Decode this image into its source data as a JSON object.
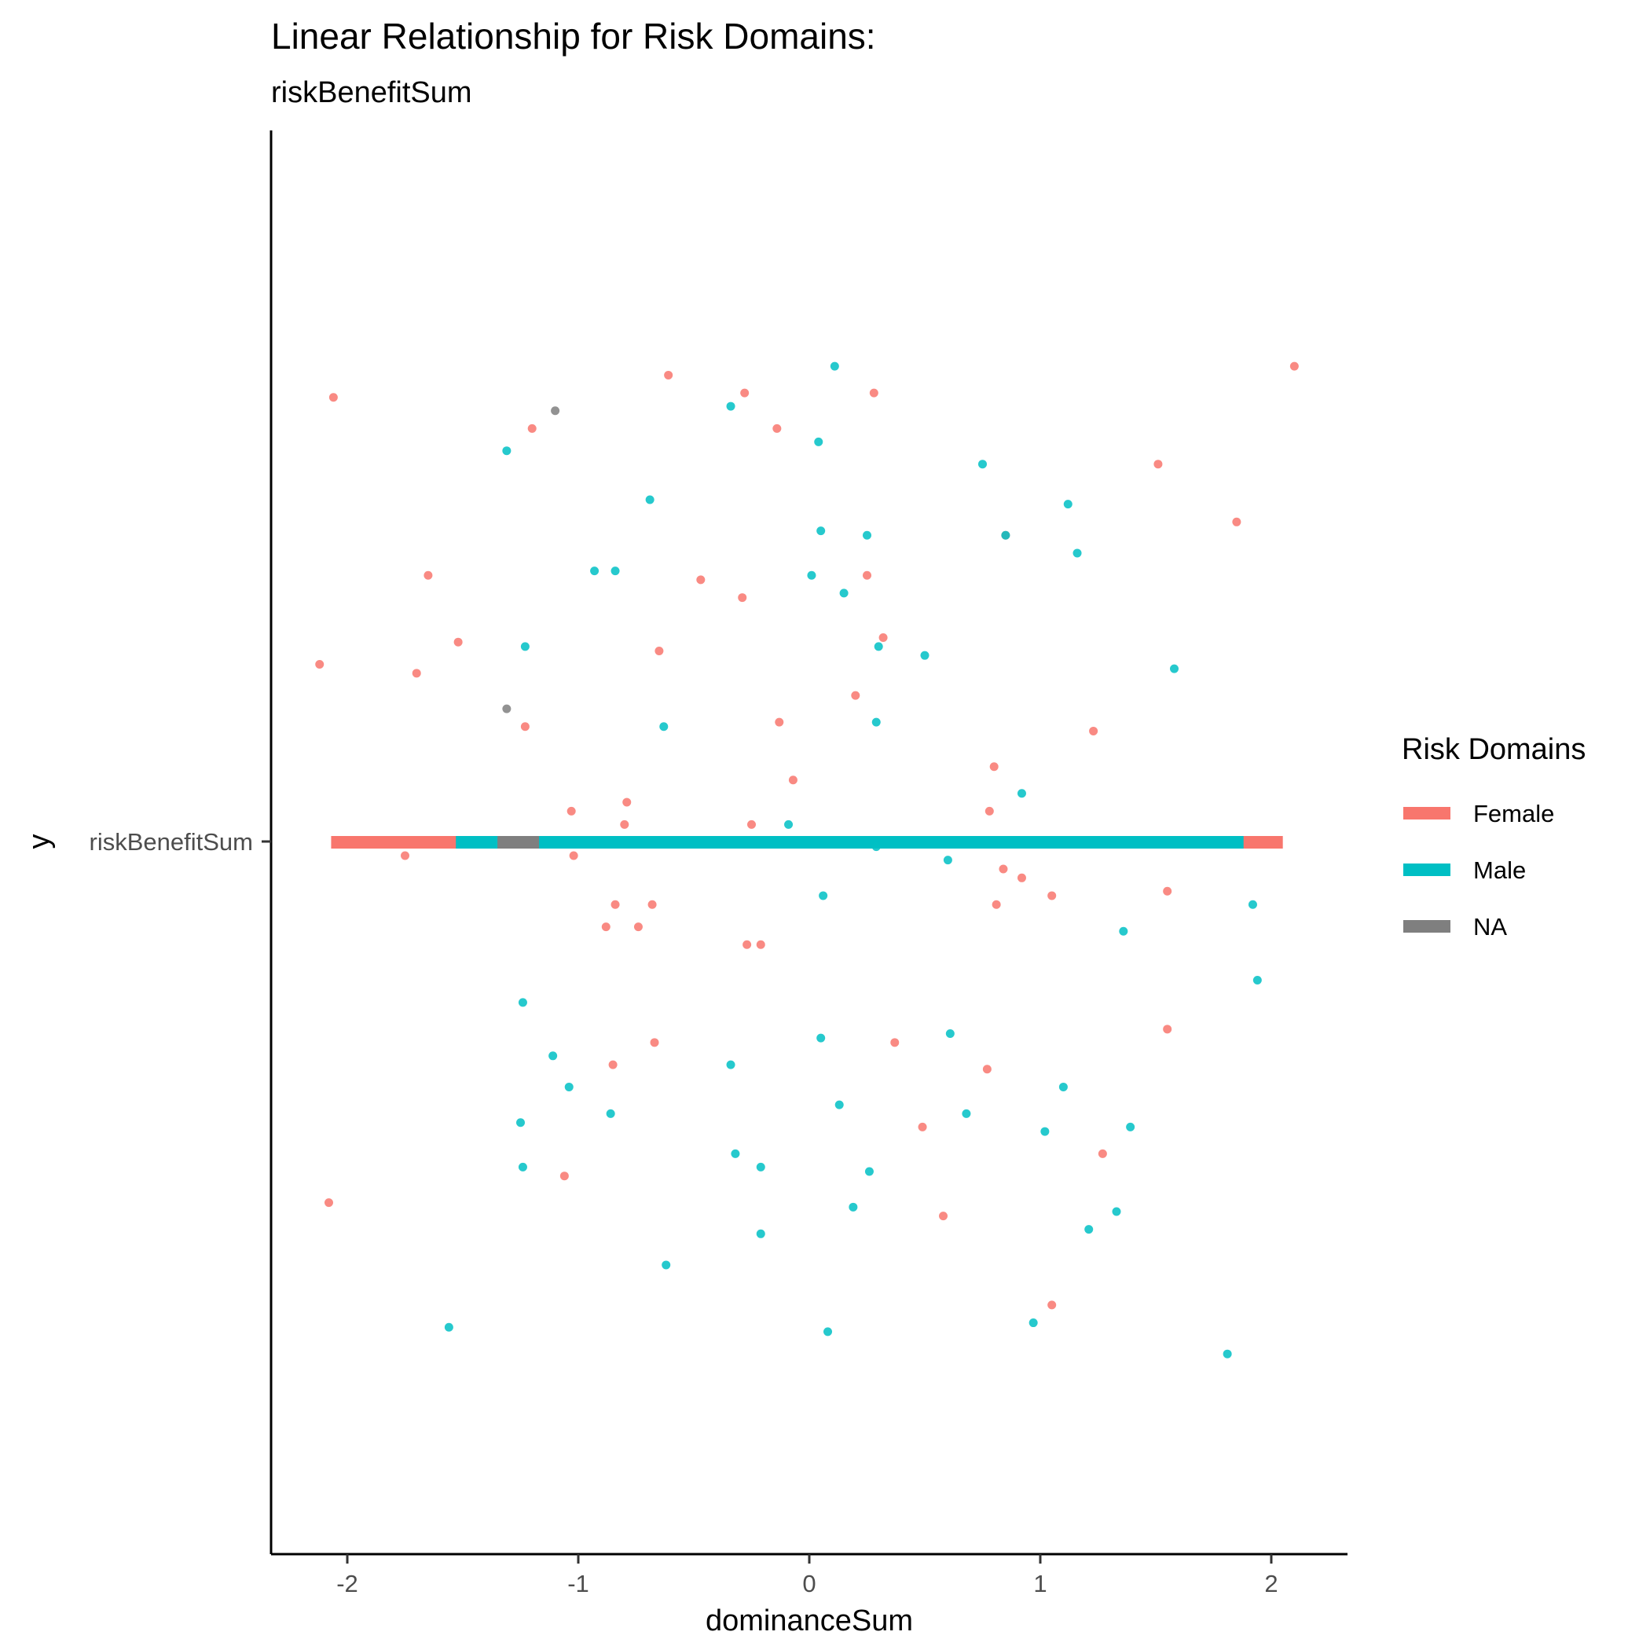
{
  "chart_data": {
    "type": "scatter",
    "title": "Linear Relationship for Risk Domains:",
    "subtitle": "riskBenefitSum",
    "xlabel": "dominanceSum",
    "ylabel": "y",
    "y_category": "riskBenefitSum",
    "xlim": [
      -2.33,
      2.33
    ],
    "ylim": [
      -1.6,
      1.6
    ],
    "x_ticks": [
      -2,
      -1,
      0,
      1,
      2
    ],
    "x_tick_labels": [
      "-2",
      "-1",
      "0",
      "1",
      "2"
    ],
    "grid": false,
    "legend_position": "right",
    "legend_title": "Risk Domains",
    "legend": [
      {
        "key": "female",
        "label": "Female",
        "color": "#F8766D"
      },
      {
        "key": "male",
        "label": "Male",
        "color": "#00BFC4"
      },
      {
        "key": "na",
        "label": "NA",
        "color": "#7F7F7F"
      }
    ],
    "range_bars": [
      {
        "group": "female",
        "x_start": -2.07,
        "x_end": 2.05
      },
      {
        "group": "male",
        "x_start": -1.53,
        "x_end": 1.88
      },
      {
        "group": "na",
        "x_start": -1.35,
        "x_end": -1.17
      }
    ],
    "series": [
      {
        "group": "female",
        "color": "#F8766D",
        "points": [
          [
            -2.06,
            1.0
          ],
          [
            -0.61,
            1.05
          ],
          [
            -0.28,
            1.01
          ],
          [
            0.28,
            1.01
          ],
          [
            2.1,
            1.07
          ],
          [
            -1.2,
            0.93
          ],
          [
            -0.14,
            0.93
          ],
          [
            1.51,
            0.85
          ],
          [
            1.85,
            0.72
          ],
          [
            0.85,
            0.69
          ],
          [
            -1.65,
            0.6
          ],
          [
            -0.47,
            0.59
          ],
          [
            -0.29,
            0.55
          ],
          [
            0.25,
            0.6
          ],
          [
            -1.52,
            0.45
          ],
          [
            -2.12,
            0.4
          ],
          [
            -1.7,
            0.38
          ],
          [
            -0.65,
            0.43
          ],
          [
            0.32,
            0.46
          ],
          [
            0.2,
            0.33
          ],
          [
            -1.23,
            0.26
          ],
          [
            -0.13,
            0.27
          ],
          [
            1.23,
            0.25
          ],
          [
            0.8,
            0.17
          ],
          [
            -0.07,
            0.14
          ],
          [
            -0.79,
            0.09
          ],
          [
            -1.03,
            0.07
          ],
          [
            0.78,
            0.07
          ],
          [
            -0.8,
            0.04
          ],
          [
            -0.25,
            0.04
          ],
          [
            -1.75,
            -0.03
          ],
          [
            -1.02,
            -0.03
          ],
          [
            0.84,
            -0.06
          ],
          [
            0.92,
            -0.08
          ],
          [
            1.55,
            -0.11
          ],
          [
            1.05,
            -0.12
          ],
          [
            0.81,
            -0.14
          ],
          [
            -0.84,
            -0.14
          ],
          [
            -0.68,
            -0.14
          ],
          [
            -0.88,
            -0.19
          ],
          [
            -0.74,
            -0.19
          ],
          [
            -0.27,
            -0.23
          ],
          [
            -0.21,
            -0.23
          ],
          [
            1.55,
            -0.42
          ],
          [
            -0.67,
            -0.45
          ],
          [
            0.37,
            -0.45
          ],
          [
            -0.85,
            -0.5
          ],
          [
            0.77,
            -0.51
          ],
          [
            0.49,
            -0.64
          ],
          [
            1.27,
            -0.7
          ],
          [
            -1.06,
            -0.75
          ],
          [
            -2.08,
            -0.81
          ],
          [
            0.58,
            -0.84
          ],
          [
            1.05,
            -1.04
          ]
        ]
      },
      {
        "group": "male",
        "color": "#00BFC4",
        "points": [
          [
            0.11,
            1.07
          ],
          [
            -0.34,
            0.98
          ],
          [
            0.04,
            0.9
          ],
          [
            -1.31,
            0.88
          ],
          [
            0.75,
            0.85
          ],
          [
            -0.69,
            0.77
          ],
          [
            1.12,
            0.76
          ],
          [
            0.05,
            0.7
          ],
          [
            0.25,
            0.69
          ],
          [
            0.85,
            0.69
          ],
          [
            1.16,
            0.65
          ],
          [
            -0.93,
            0.61
          ],
          [
            -0.84,
            0.61
          ],
          [
            0.01,
            0.6
          ],
          [
            0.15,
            0.56
          ],
          [
            -1.23,
            0.44
          ],
          [
            0.3,
            0.44
          ],
          [
            0.5,
            0.42
          ],
          [
            1.58,
            0.39
          ],
          [
            -0.63,
            0.26
          ],
          [
            0.29,
            0.27
          ],
          [
            0.92,
            0.11
          ],
          [
            -0.09,
            0.04
          ],
          [
            0.29,
            -0.01
          ],
          [
            0.6,
            -0.04
          ],
          [
            0.06,
            -0.12
          ],
          [
            1.92,
            -0.14
          ],
          [
            1.36,
            -0.2
          ],
          [
            1.94,
            -0.31
          ],
          [
            -1.24,
            -0.36
          ],
          [
            0.05,
            -0.44
          ],
          [
            0.61,
            -0.43
          ],
          [
            -1.11,
            -0.48
          ],
          [
            -0.34,
            -0.5
          ],
          [
            1.1,
            -0.55
          ],
          [
            -1.04,
            -0.55
          ],
          [
            0.13,
            -0.59
          ],
          [
            -0.86,
            -0.61
          ],
          [
            0.68,
            -0.61
          ],
          [
            -1.25,
            -0.63
          ],
          [
            1.39,
            -0.64
          ],
          [
            1.02,
            -0.65
          ],
          [
            -0.32,
            -0.7
          ],
          [
            -1.24,
            -0.73
          ],
          [
            -0.21,
            -0.73
          ],
          [
            0.26,
            -0.74
          ],
          [
            0.19,
            -0.82
          ],
          [
            1.33,
            -0.83
          ],
          [
            1.21,
            -0.87
          ],
          [
            -0.21,
            -0.88
          ],
          [
            -0.62,
            -0.95
          ],
          [
            -1.56,
            -1.09
          ],
          [
            0.08,
            -1.1
          ],
          [
            0.97,
            -1.08
          ],
          [
            1.81,
            -1.15
          ]
        ]
      },
      {
        "group": "na",
        "color": "#7F7F7F",
        "points": [
          [
            -1.1,
            0.97
          ],
          [
            -1.31,
            0.3
          ]
        ]
      }
    ]
  }
}
